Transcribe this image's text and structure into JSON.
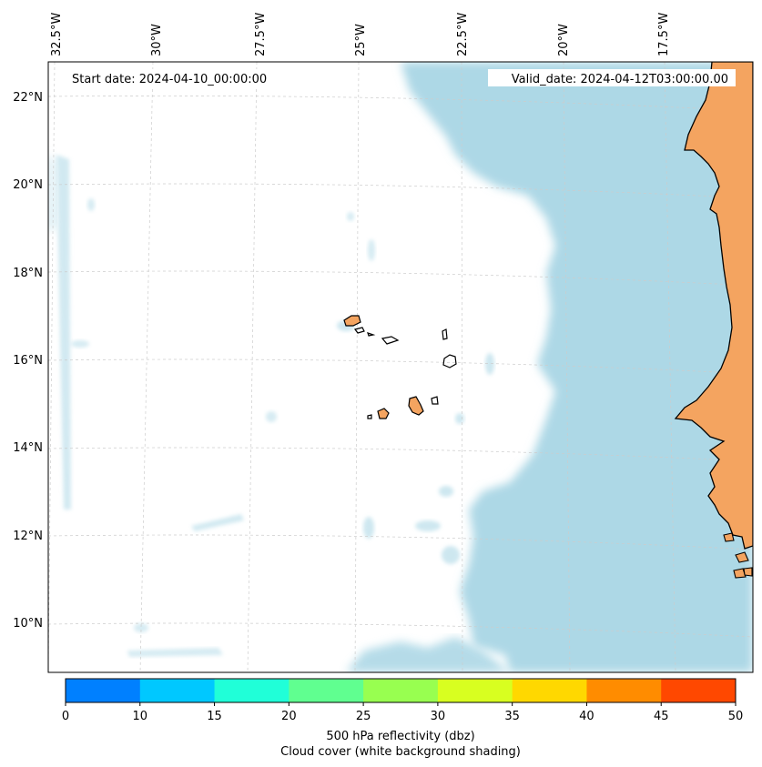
{
  "header": {
    "start_date": "Start date: 2024-04-10_00:00:00",
    "valid_date": "Valid_date: 2024-04-12T03:00:00.00"
  },
  "axes": {
    "lon_labels": [
      "32.5°W",
      "30°W",
      "27.5°W",
      "25°W",
      "22.5°W",
      "20°W",
      "17.5°W"
    ],
    "lat_labels": [
      "22°N",
      "20°N",
      "18°N",
      "16°N",
      "14°N",
      "12°N",
      "10°N"
    ]
  },
  "colorbar": {
    "ticks": [
      "0",
      "10",
      "15",
      "20",
      "25",
      "30",
      "35",
      "40",
      "45",
      "50"
    ],
    "colors": [
      "#0080ff",
      "#00c8ff",
      "#20ffd8",
      "#60ff90",
      "#98ff50",
      "#d8ff20",
      "#ffd800",
      "#ff8c00",
      "#ff4800"
    ],
    "title": "500 hPa reflectivity (dbz)",
    "subtitle": "Cloud cover (white background shading)"
  },
  "colors": {
    "land": "#f4a460",
    "cloud": "#add8e6",
    "grid": "#cccccc"
  }
}
